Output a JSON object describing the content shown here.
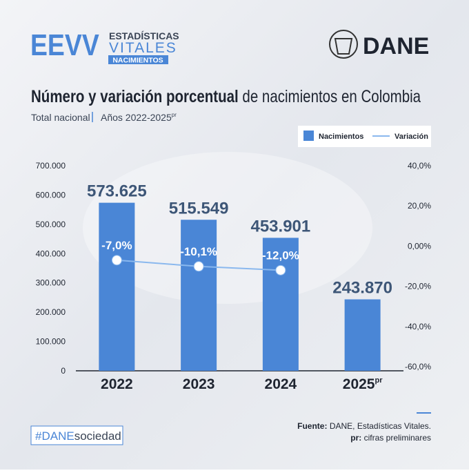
{
  "header": {
    "logo_acronym": "EEVV",
    "logo_line1": "ESTADÍSTICAS",
    "logo_line2": "VITALES",
    "logo_line3": "NACIMIENTOS",
    "brand": "DANE"
  },
  "chart_data": {
    "type": "bar",
    "title_bold": "Número y variación porcentual",
    "title_rest": "de nacimientos en Colombia",
    "subtitle": "Total nacional",
    "subtitle_period": "Años 2022-2025",
    "subtitle_period_note": "pr",
    "categories": [
      "2022",
      "2023",
      "2024",
      "2025"
    ],
    "category_notes": [
      null,
      null,
      null,
      "pr"
    ],
    "series": [
      {
        "name": "Nacimientos",
        "type": "bar",
        "color": "#4a86d6",
        "values": [
          573625,
          515549,
          453901,
          243870
        ],
        "value_labels": [
          "573.625",
          "515.549",
          "453.901",
          "243.870"
        ]
      },
      {
        "name": "Variación",
        "type": "line",
        "axis": "y2",
        "color": "#8ab8ee",
        "values": [
          -7.0,
          -10.1,
          -12.0,
          null
        ],
        "value_labels": [
          "-7,0%",
          "-10,1%",
          "-12,0%",
          null
        ]
      }
    ],
    "ylim": [
      0,
      700000
    ],
    "yticks": [
      0,
      {
        "value": 100000,
        "label": "100.000"
      },
      {
        "value": 200000,
        "label": "200.000"
      },
      {
        "value": 300000,
        "label": "300.000"
      },
      {
        "value": 400000,
        "label": "400.000"
      },
      {
        "value": 500000,
        "label": "500.000"
      },
      {
        "value": 600000,
        "label": "600.000"
      },
      {
        "value": 700000,
        "label": "700.000"
      }
    ],
    "y2lim": [
      -60,
      40
    ],
    "y2ticks": [
      {
        "value": -60,
        "label": "-60,0%"
      },
      {
        "value": -40,
        "label": "-40,0%"
      },
      {
        "value": -20,
        "label": "-20,0%"
      },
      {
        "value": 0,
        "label": "0,00%"
      },
      {
        "value": 20,
        "label": "20,0%"
      },
      {
        "value": 40,
        "label": "40,0%"
      }
    ],
    "legend": "top-right"
  },
  "footer": {
    "source_label": "Fuente:",
    "source_text": "DANE, Estadísticas Vitales.",
    "note_label": "pr:",
    "note_text": "cifras preliminares",
    "hashtag_bold": "#DANE",
    "hashtag_rest": "sociedad"
  }
}
